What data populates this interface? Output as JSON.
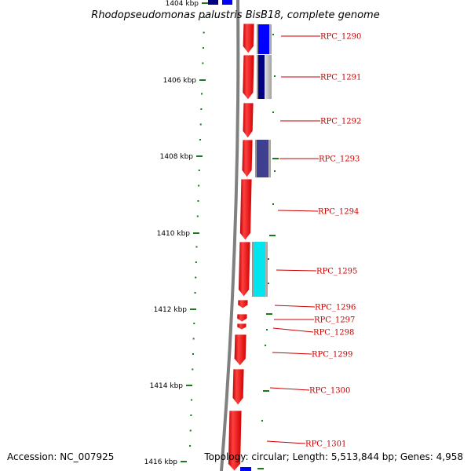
{
  "title": "Rhodopseudomonas palustris BisB18, complete genome",
  "footer": {
    "accession": "Accession: NC_007925",
    "topology": "Topology: circular; Length: 5,513,844 bp; Genes: 4,958"
  },
  "scale_ticks": [
    "1404 kbp",
    "1406 kbp",
    "1408 kbp",
    "1410 kbp",
    "1412 kbp",
    "1414 kbp",
    "1416 kbp"
  ],
  "genes": [
    {
      "label": "RPC_1290",
      "color": "#0000ff"
    },
    {
      "label": "RPC_1291",
      "color": "#000080"
    },
    {
      "label": "RPC_1292",
      "color": "#ff0000"
    },
    {
      "label": "RPC_1293",
      "color": "#3f3f8f"
    },
    {
      "label": "RPC_1294",
      "color": "#ff0000"
    },
    {
      "label": "RPC_1295",
      "color": "#00e5ee"
    },
    {
      "label": "RPC_1296",
      "color": "#ff0000"
    },
    {
      "label": "RPC_1297",
      "color": "#ff0000"
    },
    {
      "label": "RPC_1298",
      "color": "#ff0000"
    },
    {
      "label": "RPC_1299",
      "color": "#ff0000"
    },
    {
      "label": "RPC_1300",
      "color": "#ff0000"
    },
    {
      "label": "RPC_1301",
      "color": "#ff0000"
    }
  ],
  "colors": {
    "forward_strand": "#ff0000",
    "label_line": "#cc0000",
    "tick": "#1a7a1a",
    "backbone": "#808080"
  }
}
